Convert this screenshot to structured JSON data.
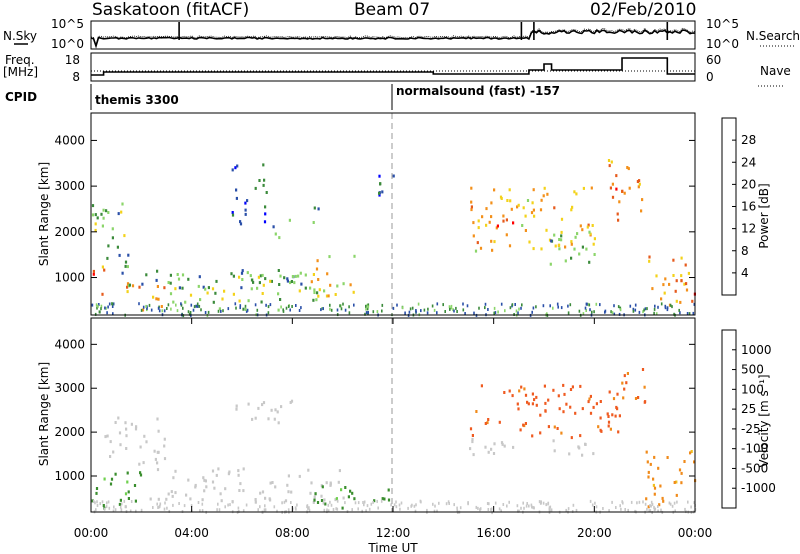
{
  "header": {
    "radar": "Saskatoon (fitACF)",
    "beam": "Beam 07",
    "date": "02/Feb/2010"
  },
  "noise_panel": {
    "left_label": "N.Sky",
    "left_ticks": [
      "10^5",
      "10^0"
    ],
    "right_ticks": [
      "10^5",
      "10^0"
    ],
    "right_label": "N.Search"
  },
  "freq_panel": {
    "left_label_1": "Freq.",
    "left_label_2": "[MHz]",
    "left_ticks": [
      "18",
      "8"
    ],
    "right_ticks": [
      "60",
      "0"
    ],
    "right_label": "Nave"
  },
  "cpid": {
    "label": "CPID",
    "segments": [
      {
        "start_hour": 0.0,
        "name": "themis 3300"
      },
      {
        "start_hour": 12.0,
        "name": "normalsound (fast) -157"
      }
    ]
  },
  "x_axis": {
    "label": "Time UT",
    "ticks": [
      "00:00",
      "04:00",
      "08:00",
      "12:00",
      "16:00",
      "20:00",
      "00:00"
    ],
    "tick_hours": [
      0,
      4,
      8,
      12,
      16,
      20,
      24
    ]
  },
  "y_axis": {
    "label": "Slant Range [km]",
    "ticks": [
      "1000",
      "2000",
      "3000",
      "4000"
    ],
    "tick_values": [
      1000,
      2000,
      3000,
      4000
    ]
  },
  "power_colorbar": {
    "label": "Power [dB]",
    "ticks": [
      "4",
      "8",
      "12",
      "16",
      "20",
      "24",
      "28"
    ],
    "colors": [
      "#0000ff",
      "#2a4fa8",
      "#3b8a3b",
      "#8bd56a",
      "#f3d21a",
      "#f3901a",
      "#e65a1c",
      "#ff0000"
    ]
  },
  "velocity_colorbar": {
    "label": "Velocity [m s⁻¹]",
    "ticks": [
      "1000",
      "500",
      "100",
      "25",
      "-25",
      "-100",
      "-500",
      "-1000"
    ],
    "colors": [
      "#1f3fc4",
      "#2f7d8a",
      "#3a8e2e",
      "#6fd04e",
      "#c8c8c8",
      "#f0c020",
      "#f08a1a",
      "#ef5a20",
      "#ff0000"
    ]
  },
  "chart_data": {
    "type": "heatmap",
    "title": "Saskatoon (fitACF)",
    "xlabel": "Time UT",
    "ylabel": "Slant Range [km]",
    "xlim_hours": [
      0,
      24
    ],
    "ylim_km": [
      180,
      4600
    ],
    "vertical_marker_hour": 12,
    "power_panel": {
      "units": "dB",
      "regions": [
        {
          "t": [
            0.0,
            0.5
          ],
          "r": [
            600,
            1300
          ],
          "dB": 28
        },
        {
          "t": [
            0.0,
            1.5
          ],
          "r": [
            1100,
            2700
          ],
          "dB": 12
        },
        {
          "t": [
            1.0,
            3.0
          ],
          "r": [
            300,
            900
          ],
          "dB": 22
        },
        {
          "t": [
            1.0,
            9.0
          ],
          "r": [
            800,
            1200
          ],
          "dB": 10
        },
        {
          "t": [
            3.0,
            9.0
          ],
          "r": [
            300,
            1100
          ],
          "dB": 14
        },
        {
          "t": [
            5.5,
            7.0
          ],
          "r": [
            2200,
            3500
          ],
          "dB": 6
        },
        {
          "t": [
            7.2,
            8.0
          ],
          "r": [
            1900,
            2400
          ],
          "dB": 12
        },
        {
          "t": [
            8.5,
            10.5
          ],
          "r": [
            600,
            1500
          ],
          "dB": 18
        },
        {
          "t": [
            8.5,
            9.0
          ],
          "r": [
            2200,
            2700
          ],
          "dB": 10
        },
        {
          "t": [
            10.5,
            12.0
          ],
          "r": [
            2800,
            3300
          ],
          "dB": 6
        },
        {
          "t": [
            15.0,
            20.0
          ],
          "r": [
            1600,
            3000
          ],
          "dB": 20
        },
        {
          "t": [
            16.0,
            17.0
          ],
          "r": [
            2000,
            2400
          ],
          "dB": 28
        },
        {
          "t": [
            18.0,
            20.0
          ],
          "r": [
            1300,
            2100
          ],
          "dB": 12
        },
        {
          "t": [
            20.5,
            22.0
          ],
          "r": [
            2200,
            3600
          ],
          "dB": 24
        },
        {
          "t": [
            22.0,
            24.0
          ],
          "r": [
            400,
            1500
          ],
          "dB": 22
        },
        {
          "t": [
            23.5,
            24.0
          ],
          "r": [
            500,
            1100
          ],
          "dB": 28
        }
      ]
    },
    "velocity_panel": {
      "units": "m s^-1",
      "regions": [
        {
          "t": [
            0.0,
            2.0
          ],
          "r": [
            300,
            1200
          ],
          "v": 100
        },
        {
          "t": [
            0.5,
            3.0
          ],
          "r": [
            1300,
            2400
          ],
          "v": 0
        },
        {
          "t": [
            2.0,
            10.0
          ],
          "r": [
            400,
            1200
          ],
          "v": 0
        },
        {
          "t": [
            5.5,
            8.0
          ],
          "r": [
            2200,
            2800
          ],
          "v": 0
        },
        {
          "t": [
            8.5,
            12.0
          ],
          "r": [
            300,
            800
          ],
          "v": 100
        },
        {
          "t": [
            15.0,
            21.0
          ],
          "r": [
            1900,
            3100
          ],
          "v": -500
        },
        {
          "t": [
            15.0,
            20.0
          ],
          "r": [
            1500,
            1900
          ],
          "v": 0
        },
        {
          "t": [
            21.0,
            22.0
          ],
          "r": [
            2500,
            3600
          ],
          "v": -300
        },
        {
          "t": [
            22.0,
            24.0
          ],
          "r": [
            300,
            1600
          ],
          "v": -100
        }
      ]
    }
  }
}
